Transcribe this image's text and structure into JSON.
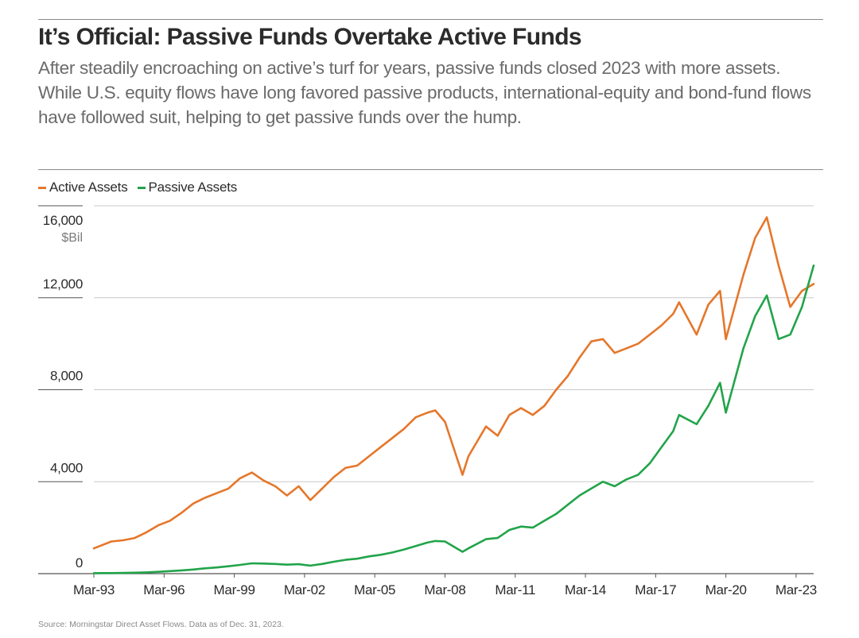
{
  "header": {
    "title": "It’s Official: Passive Funds Overtake Active Funds",
    "subtitle": "After steadily encroaching on active’s turf for years, passive funds closed 2023 with more assets. While U.S. equity flows have long favored passive products, international-equity and bond-fund flows have followed suit, helping to get passive funds over the hump."
  },
  "source": "Source: Morningstar Direct Asset Flows. Data as of Dec. 31, 2023.",
  "chart_data": {
    "type": "line",
    "yunit": "$Bil",
    "ylim": [
      0,
      16000
    ],
    "yticks": [
      0,
      4000,
      8000,
      12000,
      16000
    ],
    "ytick_labels": [
      "0",
      "4,000",
      "8,000",
      "12,000",
      "16,000"
    ],
    "xtick_labels": [
      "Mar-93",
      "Mar-96",
      "Mar-99",
      "Mar-02",
      "Mar-05",
      "Mar-08",
      "Mar-11",
      "Mar-14",
      "Mar-17",
      "Mar-20",
      "Mar-23"
    ],
    "grid": true,
    "legend_position": "top-left",
    "series": [
      {
        "name": "Active Assets",
        "color": "#e5772b",
        "x": [
          "Mar-93",
          "Dec-93",
          "Jun-94",
          "Dec-94",
          "Jun-95",
          "Dec-95",
          "Jun-96",
          "Dec-96",
          "Jun-97",
          "Dec-97",
          "Jun-98",
          "Dec-98",
          "Jun-99",
          "Dec-99",
          "Jun-00",
          "Dec-00",
          "Jun-01",
          "Dec-01",
          "Jun-02",
          "Dec-02",
          "Jun-03",
          "Dec-03",
          "Jun-04",
          "Dec-04",
          "Jun-05",
          "Dec-05",
          "Jun-06",
          "Dec-06",
          "Jun-07",
          "Oct-07",
          "Mar-08",
          "Dec-08",
          "Mar-09",
          "Dec-09",
          "Jun-10",
          "Dec-10",
          "Jun-11",
          "Dec-11",
          "Jun-12",
          "Dec-12",
          "Jun-13",
          "Dec-13",
          "Jun-14",
          "Dec-14",
          "Jun-15",
          "Dec-15",
          "Jun-16",
          "Dec-16",
          "Jun-17",
          "Dec-17",
          "Mar-18",
          "Dec-18",
          "Jun-19",
          "Dec-19",
          "Mar-20",
          "Dec-20",
          "Jun-21",
          "Dec-21",
          "Jun-22",
          "Dec-22",
          "Jun-23",
          "Dec-23"
        ],
        "values": [
          1100,
          1400,
          1450,
          1550,
          1800,
          2100,
          2300,
          2650,
          3050,
          3300,
          3500,
          3700,
          4150,
          4400,
          4050,
          3800,
          3400,
          3800,
          3200,
          3700,
          4200,
          4600,
          4700,
          5100,
          5500,
          5900,
          6300,
          6800,
          7000,
          7100,
          6600,
          4300,
          5100,
          6400,
          6000,
          6900,
          7200,
          6900,
          7300,
          8000,
          8600,
          9400,
          10100,
          10200,
          9600,
          9800,
          10000,
          10400,
          10800,
          11300,
          11800,
          10400,
          11700,
          12300,
          10200,
          13000,
          14600,
          15500,
          13400,
          11600,
          12300,
          12600
        ]
      },
      {
        "name": "Passive Assets",
        "color": "#22a44a",
        "x": [
          "Mar-93",
          "Dec-93",
          "Jun-94",
          "Dec-94",
          "Jun-95",
          "Dec-95",
          "Jun-96",
          "Dec-96",
          "Jun-97",
          "Dec-97",
          "Jun-98",
          "Dec-98",
          "Jun-99",
          "Dec-99",
          "Jun-00",
          "Dec-00",
          "Jun-01",
          "Dec-01",
          "Jun-02",
          "Dec-02",
          "Jun-03",
          "Dec-03",
          "Jun-04",
          "Dec-04",
          "Jun-05",
          "Dec-05",
          "Jun-06",
          "Dec-06",
          "Jun-07",
          "Oct-07",
          "Mar-08",
          "Dec-08",
          "Mar-09",
          "Dec-09",
          "Jun-10",
          "Dec-10",
          "Jun-11",
          "Dec-11",
          "Jun-12",
          "Dec-12",
          "Jun-13",
          "Dec-13",
          "Jun-14",
          "Dec-14",
          "Jun-15",
          "Dec-15",
          "Jun-16",
          "Dec-16",
          "Jun-17",
          "Dec-17",
          "Mar-18",
          "Dec-18",
          "Jun-19",
          "Dec-19",
          "Mar-20",
          "Dec-20",
          "Jun-21",
          "Dec-21",
          "Jun-22",
          "Dec-22",
          "Jun-23",
          "Dec-23"
        ],
        "values": [
          20,
          25,
          30,
          40,
          55,
          80,
          110,
          140,
          180,
          230,
          270,
          320,
          380,
          450,
          440,
          420,
          390,
          410,
          350,
          420,
          520,
          600,
          650,
          750,
          820,
          920,
          1050,
          1200,
          1350,
          1420,
          1400,
          950,
          1100,
          1500,
          1550,
          1900,
          2050,
          2000,
          2300,
          2600,
          3000,
          3400,
          3700,
          4000,
          3800,
          4100,
          4300,
          4800,
          5500,
          6200,
          6900,
          6500,
          7300,
          8300,
          7000,
          9800,
          11200,
          12100,
          10200,
          10400,
          11600,
          13400
        ]
      }
    ]
  }
}
